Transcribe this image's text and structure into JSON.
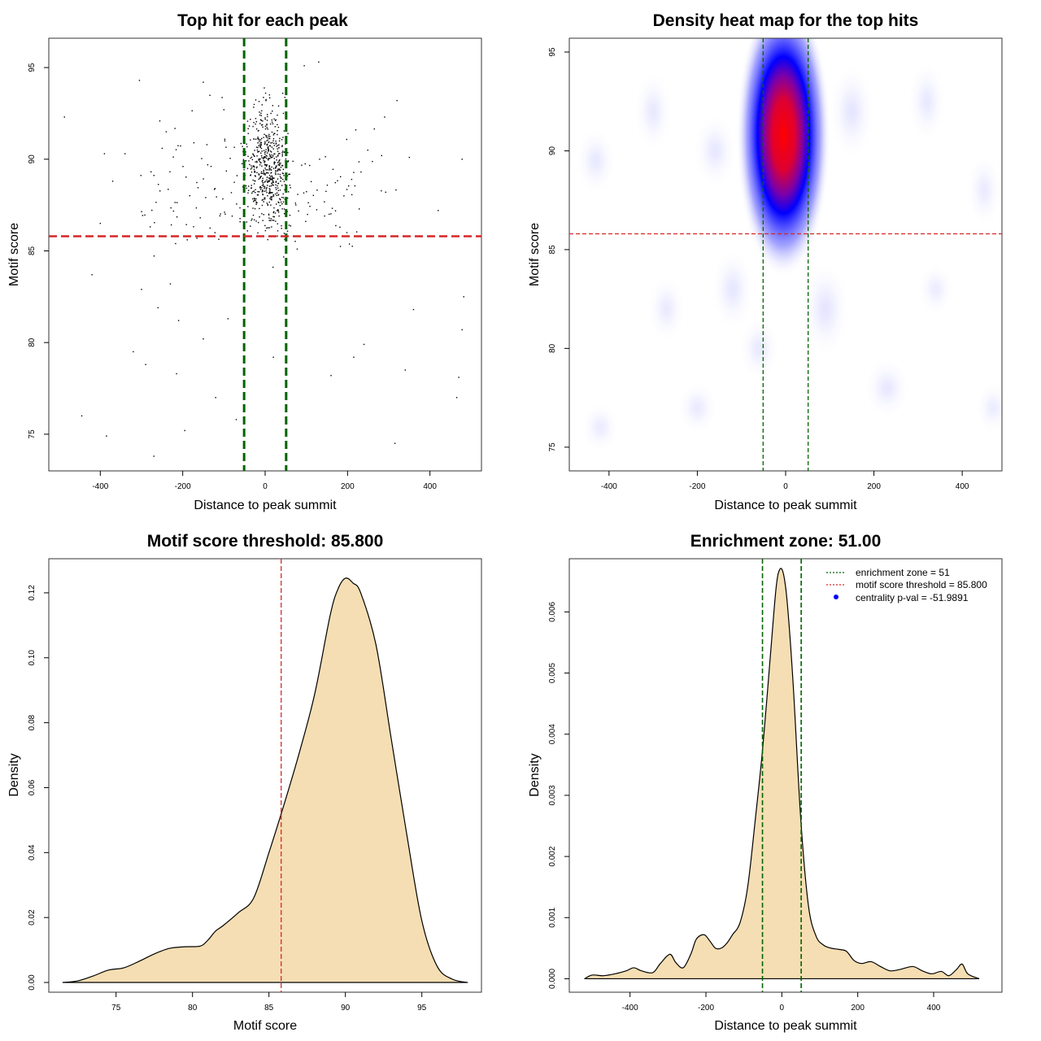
{
  "chart_data": [
    {
      "type": "scatter",
      "title": "Top hit for each peak",
      "xlabel": "Distance to peak summit",
      "ylabel": "Motif score",
      "xlim": [
        -525,
        525
      ],
      "ylim": [
        73.0,
        96.6
      ],
      "xticks": [
        -400,
        -200,
        0,
        200,
        400
      ],
      "yticks": [
        75,
        80,
        85,
        90,
        95
      ],
      "vlines": [
        -51,
        51
      ],
      "hline": 85.8,
      "colors": {
        "points": "#000000",
        "vline": "#006400",
        "hline": "#d62728"
      },
      "points_sample": [
        {
          "x": -487,
          "y": 92.3
        },
        {
          "x": -420,
          "y": 83.7
        },
        {
          "x": -400,
          "y": 86.5
        },
        {
          "x": -390,
          "y": 90.3
        },
        {
          "x": -445,
          "y": 76.0
        },
        {
          "x": -385,
          "y": 74.9
        },
        {
          "x": -370,
          "y": 88.8
        },
        {
          "x": -340,
          "y": 90.3
        },
        {
          "x": -320,
          "y": 79.5
        },
        {
          "x": -305,
          "y": 94.3
        },
        {
          "x": -300,
          "y": 82.9
        },
        {
          "x": -290,
          "y": 78.8
        },
        {
          "x": -270,
          "y": 73.8
        },
        {
          "x": -260,
          "y": 81.9
        },
        {
          "x": -230,
          "y": 83.2
        },
        {
          "x": -215,
          "y": 78.3
        },
        {
          "x": -210,
          "y": 81.2
        },
        {
          "x": -195,
          "y": 75.2
        },
        {
          "x": -150,
          "y": 80.2
        },
        {
          "x": -120,
          "y": 77.0
        },
        {
          "x": -90,
          "y": 81.3
        },
        {
          "x": -70,
          "y": 75.8
        },
        {
          "x": -50,
          "y": 78.4
        },
        {
          "x": 20,
          "y": 79.2
        },
        {
          "x": 160,
          "y": 78.2
        },
        {
          "x": 215,
          "y": 79.2
        },
        {
          "x": 240,
          "y": 79.9
        },
        {
          "x": 315,
          "y": 74.5
        },
        {
          "x": 340,
          "y": 78.5
        },
        {
          "x": 360,
          "y": 81.8
        },
        {
          "x": 420,
          "y": 87.2
        },
        {
          "x": 465,
          "y": 77.0
        },
        {
          "x": 470,
          "y": 78.1
        },
        {
          "x": 478,
          "y": 80.7
        },
        {
          "x": 482,
          "y": 82.5
        },
        {
          "x": 478,
          "y": 90.0
        },
        {
          "x": 320,
          "y": 93.2
        },
        {
          "x": 290,
          "y": 92.3
        },
        {
          "x": 350,
          "y": 90.1
        },
        {
          "x": 220,
          "y": 91.6
        },
        {
          "x": 130,
          "y": 95.3
        },
        {
          "x": 95,
          "y": 95.1
        },
        {
          "x": -150,
          "y": 94.2
        },
        {
          "x": -100,
          "y": 92.7
        },
        {
          "x": 50,
          "y": 73.9
        }
      ]
    },
    {
      "type": "heatmap",
      "title": "Density heat map for the top hits",
      "xlabel": "Distance to peak summit",
      "ylabel": "Motif score",
      "xlim": [
        -490,
        490
      ],
      "ylim": [
        73.8,
        95.7
      ],
      "xticks": [
        -400,
        -200,
        0,
        200,
        400
      ],
      "yticks": [
        75,
        80,
        85,
        90,
        95
      ],
      "vlines": [
        -51,
        51
      ],
      "hline": 85.8,
      "peak": {
        "x": -5,
        "y": 90.8
      },
      "colors": {
        "low": "#ffffff",
        "mid": "#0000ff",
        "high": "#ff0000",
        "vline": "#006400",
        "hline": "#d62728"
      }
    },
    {
      "type": "area",
      "title": "Motif score threshold: 85.800",
      "xlabel": "Motif score",
      "ylabel": "Density",
      "xlim": [
        70.6,
        98.9
      ],
      "ylim": [
        -0.003,
        0.1305
      ],
      "xticks": [
        75,
        80,
        85,
        90,
        95
      ],
      "yticks": [
        "0.00",
        "0.02",
        "0.04",
        "0.06",
        "0.08",
        "0.10",
        "0.12"
      ],
      "vline": 85.8,
      "colors": {
        "fill": "#f5deb3",
        "line": "#000000",
        "vline": "#d62728"
      },
      "x": [
        71.5,
        72.5,
        73.5,
        74.5,
        75.5,
        76.5,
        77.5,
        78.5,
        79.5,
        80.5,
        81.0,
        81.5,
        82.0,
        83.0,
        84.0,
        85.0,
        86.0,
        87.0,
        88.0,
        89.0,
        89.5,
        90.0,
        90.5,
        91.0,
        92.0,
        93.0,
        94.0,
        95.0,
        96.0,
        97.0,
        98.0
      ],
      "y": [
        0.0,
        0.0005,
        0.002,
        0.0038,
        0.0045,
        0.0065,
        0.0088,
        0.0105,
        0.011,
        0.0112,
        0.013,
        0.0158,
        0.0175,
        0.0215,
        0.026,
        0.04,
        0.055,
        0.071,
        0.089,
        0.113,
        0.121,
        0.1245,
        0.123,
        0.12,
        0.104,
        0.075,
        0.046,
        0.019,
        0.005,
        0.001,
        0.0
      ]
    },
    {
      "type": "area",
      "title": "Enrichment zone: 51.00",
      "xlabel": "Distance to peak summit",
      "ylabel": "Density",
      "xlim": [
        -560,
        580
      ],
      "ylim": [
        -0.00022,
        0.00687
      ],
      "xticks": [
        -400,
        -200,
        0,
        200,
        400
      ],
      "yticks": [
        "0.000",
        "0.001",
        "0.002",
        "0.003",
        "0.004",
        "0.005",
        "0.006"
      ],
      "vlines": [
        -51,
        51
      ],
      "colors": {
        "fill": "#f5deb3",
        "line": "#000000",
        "vline": "#006400",
        "legend_hline": "#d62728",
        "legend_point": "#0000ff"
      },
      "legend": [
        {
          "label": "enrichment zone = 51",
          "style": "dotted-green"
        },
        {
          "label": "motif score threshold = 85.800",
          "style": "dotted-red"
        },
        {
          "label": "centrality p-val = -51.9891",
          "style": "point-blue"
        }
      ],
      "x": [
        -520,
        -500,
        -470,
        -440,
        -410,
        -390,
        -370,
        -340,
        -320,
        -295,
        -280,
        -260,
        -240,
        -225,
        -205,
        -190,
        -175,
        -160,
        -145,
        -130,
        -110,
        -90,
        -70,
        -50,
        -30,
        -15,
        -5,
        5,
        15,
        30,
        50,
        70,
        90,
        110,
        130,
        150,
        170,
        190,
        210,
        235,
        260,
        285,
        310,
        345,
        370,
        395,
        420,
        440,
        460,
        475,
        490,
        520
      ],
      "y": [
        0.0,
        6e-05,
        5e-05,
        8e-05,
        0.00013,
        0.00018,
        0.00013,
        0.0001,
        0.00025,
        0.0004,
        0.00027,
        0.00018,
        0.0004,
        0.00065,
        0.00072,
        0.00062,
        0.0005,
        0.0005,
        0.00058,
        0.00072,
        0.00092,
        0.0015,
        0.0026,
        0.0038,
        0.0053,
        0.0064,
        0.0067,
        0.0066,
        0.0061,
        0.0048,
        0.0026,
        0.0012,
        0.0007,
        0.00055,
        0.0005,
        0.00048,
        0.00045,
        0.0003,
        0.00025,
        0.00028,
        0.0002,
        0.00013,
        0.00015,
        0.0002,
        0.00013,
        8e-05,
        0.00012,
        5e-05,
        0.00015,
        0.00024,
        8e-05,
        0.0
      ]
    }
  ]
}
